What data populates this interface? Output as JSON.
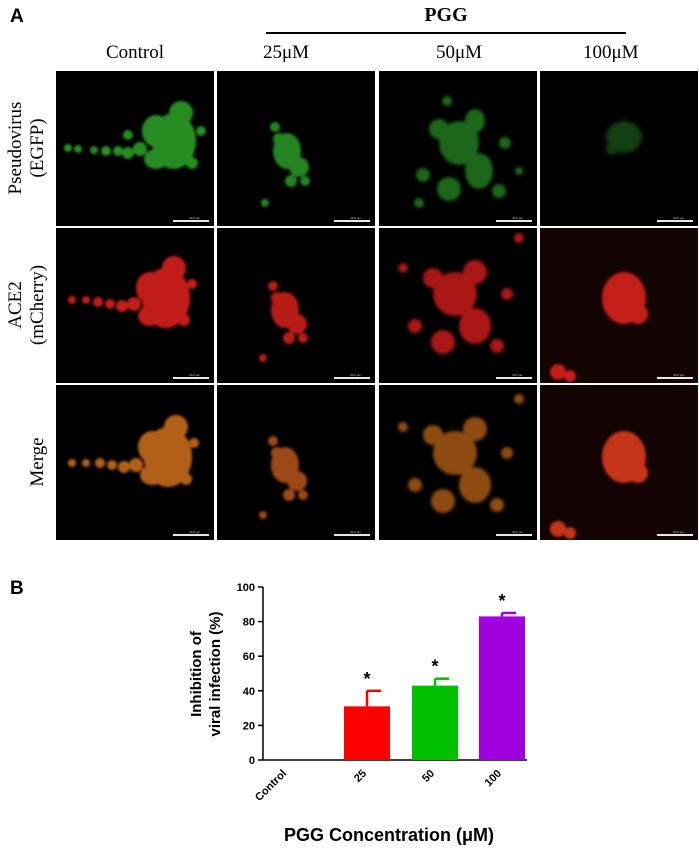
{
  "panel_a": {
    "letter": "A",
    "group_label": "PGG",
    "columns": [
      "Control",
      "25μM",
      "50μM",
      "100μM"
    ],
    "rows": [
      {
        "line1": "Pseudovirus",
        "line2": "(EGFP)"
      },
      {
        "line1": "ACE2",
        "line2": "(mCherry)"
      },
      {
        "line1": "Merge",
        "line2": ""
      }
    ],
    "channel_colors": {
      "egfp": "#2ea62a",
      "mcherry": "#d8201e",
      "merge": "#c66a1c"
    },
    "scale_bar_text": "40.0 μm"
  },
  "panel_b": {
    "letter": "B"
  },
  "chart_data": {
    "type": "bar",
    "categories": [
      "Control",
      "25",
      "50",
      "100"
    ],
    "values": [
      0,
      31,
      43,
      83
    ],
    "errors": [
      0,
      9,
      4,
      2
    ],
    "significance": [
      "",
      "*",
      "*",
      "*"
    ],
    "colors": [
      "#000000",
      "#ff0000",
      "#00c000",
      "#a000e0"
    ],
    "ylabel_line1": "Inhibition of",
    "ylabel_line2": "viral infection (%)",
    "xlabel": "PGG Concentration (μM)",
    "ylim": [
      0,
      100
    ],
    "yticks": [
      "0",
      "20",
      "40",
      "60",
      "80",
      "100"
    ]
  }
}
